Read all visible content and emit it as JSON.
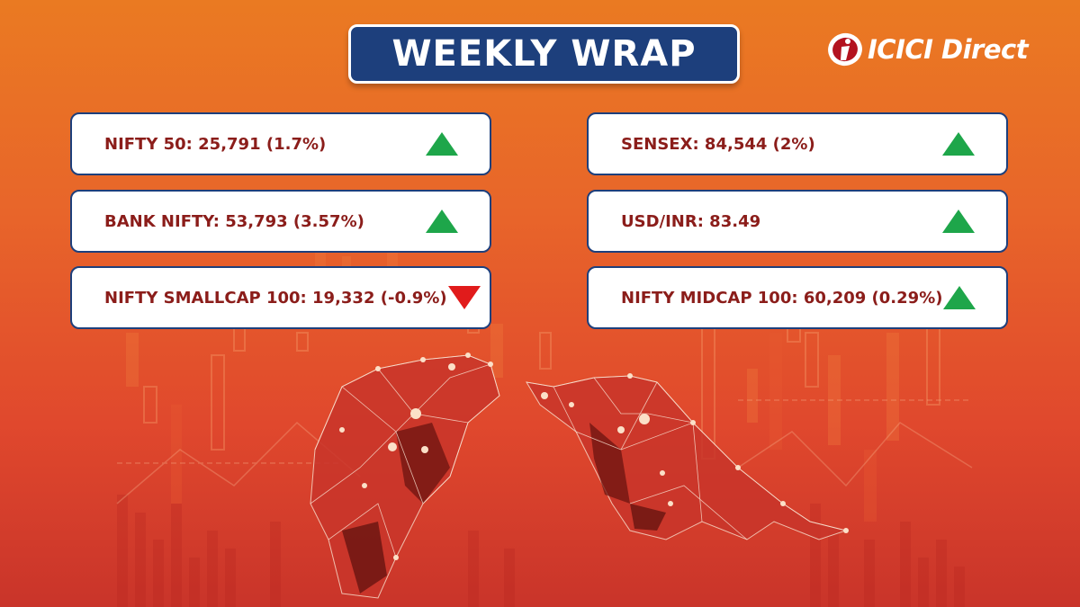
{
  "title": "WEEKLY WRAP",
  "brand": {
    "name": "ICICI Direct"
  },
  "colors": {
    "up": "#1ea64a",
    "down": "#e11b1b",
    "label_text": "#8b1d1a",
    "title_bg": "#1d3f7c"
  },
  "indices": [
    {
      "label": "NIFTY 50: 25,791 (1.7%)",
      "direction": "up"
    },
    {
      "label": "SENSEX: 84,544 (2%)",
      "direction": "up"
    },
    {
      "label": "BANK NIFTY: 53,793 (3.57%)",
      "direction": "up"
    },
    {
      "label": "USD/INR: 83.49",
      "direction": "up"
    },
    {
      "label": "NIFTY SMALLCAP 100: 19,332 (-0.9%)",
      "direction": "down"
    },
    {
      "label": "NIFTY MIDCAP 100: 60,209 (0.29%)",
      "direction": "up"
    }
  ]
}
